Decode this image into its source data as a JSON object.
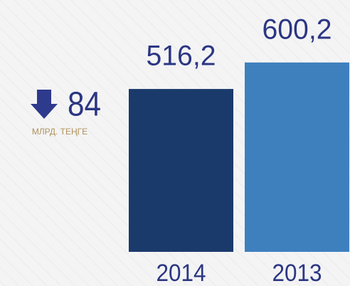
{
  "chart_data": {
    "type": "bar",
    "categories": [
      "2014",
      "2013"
    ],
    "values": [
      516.2,
      600.2
    ],
    "value_labels": [
      "516,2",
      "600,2"
    ],
    "colors": [
      "#1b3a6c",
      "#3e80be"
    ],
    "annotation": {
      "value": 84,
      "unit": "МЛРД. ТЕҢГЕ"
    }
  }
}
